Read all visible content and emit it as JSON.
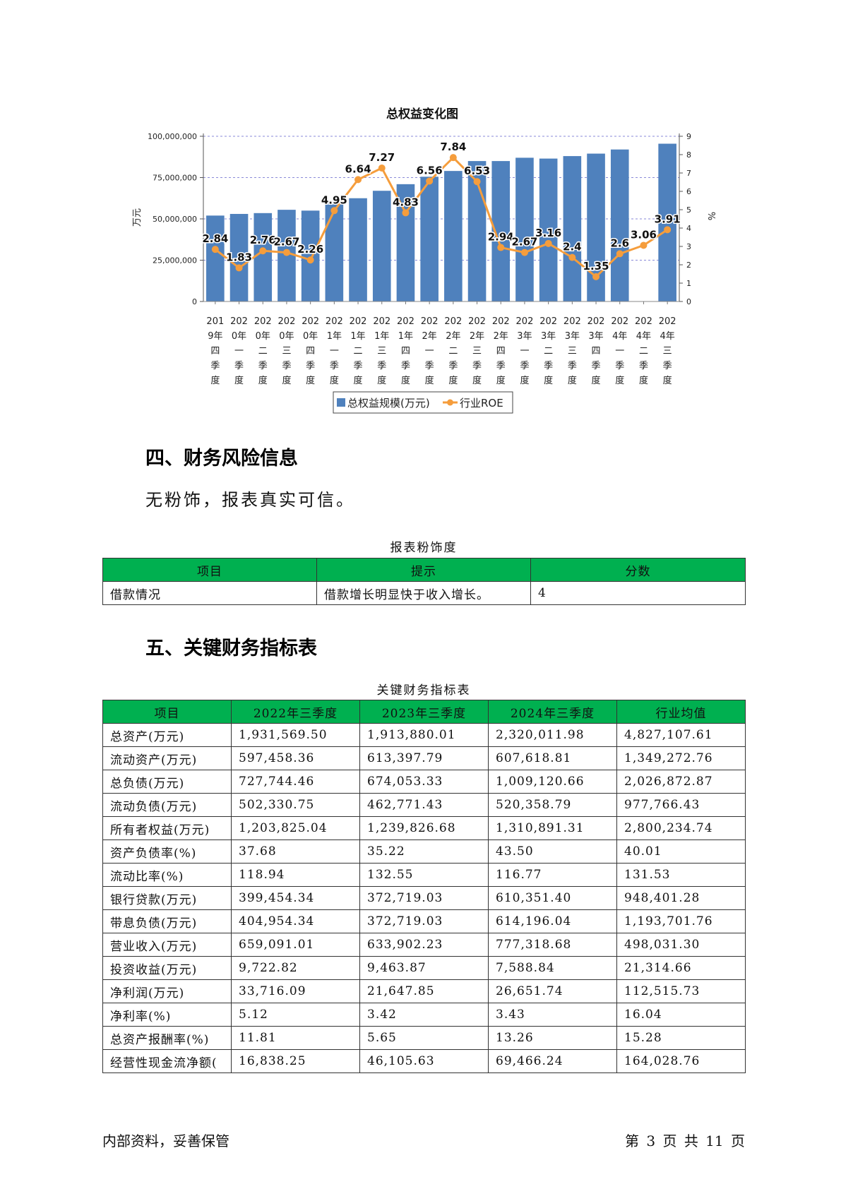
{
  "chart_data": {
    "type": "bar+line",
    "title": "总权益变化图",
    "categories": [
      "2019年四季度",
      "2020年一季度",
      "2020年二季度",
      "2020年三季度",
      "2020年四季度",
      "2021年一季度",
      "2021年二季度",
      "2021年三季度",
      "2021年四季度",
      "2022年一季度",
      "2022年二季度",
      "2022年三季度",
      "2022年四季度",
      "2023年一季度",
      "2023年二季度",
      "2023年三季度",
      "2023年四季度",
      "2024年一季度",
      "2024年二季度",
      "2024年三季度"
    ],
    "category_lines": [
      [
        "201",
        "9年",
        "四",
        "季",
        "度"
      ],
      [
        "202",
        "0年",
        "一",
        "季",
        "度"
      ],
      [
        "202",
        "0年",
        "二",
        "季",
        "度"
      ],
      [
        "202",
        "0年",
        "三",
        "季",
        "度"
      ],
      [
        "202",
        "0年",
        "四",
        "季",
        "度"
      ],
      [
        "202",
        "1年",
        "一",
        "季",
        "度"
      ],
      [
        "202",
        "1年",
        "二",
        "季",
        "度"
      ],
      [
        "202",
        "1年",
        "三",
        "季",
        "度"
      ],
      [
        "202",
        "1年",
        "四",
        "季",
        "度"
      ],
      [
        "202",
        "2年",
        "一",
        "季",
        "度"
      ],
      [
        "202",
        "2年",
        "二",
        "季",
        "度"
      ],
      [
        "202",
        "2年",
        "三",
        "季",
        "度"
      ],
      [
        "202",
        "2年",
        "四",
        "季",
        "度"
      ],
      [
        "202",
        "3年",
        "一",
        "季",
        "度"
      ],
      [
        "202",
        "3年",
        "二",
        "季",
        "度"
      ],
      [
        "202",
        "3年",
        "三",
        "季",
        "度"
      ],
      [
        "202",
        "3年",
        "四",
        "季",
        "度"
      ],
      [
        "202",
        "4年",
        "一",
        "季",
        "度"
      ],
      [
        "202",
        "4年",
        "二",
        "季",
        "度"
      ],
      [
        "202",
        "4年",
        "三",
        "季",
        "度"
      ]
    ],
    "series": [
      {
        "name": "总权益规模(万元)",
        "type": "bar",
        "axis": "left",
        "color": "#4f81bd",
        "values": [
          52000000,
          53000000,
          53500000,
          55500000,
          55000000,
          60000000,
          62500000,
          67000000,
          71000000,
          75500000,
          79000000,
          85000000,
          85000000,
          87000000,
          86500000,
          88000000,
          89500000,
          92000000,
          null,
          95500000
        ]
      },
      {
        "name": "行业ROE",
        "type": "line",
        "axis": "right",
        "color": "#f59d3c",
        "values": [
          2.84,
          1.83,
          2.76,
          2.67,
          2.26,
          4.95,
          6.64,
          7.27,
          4.83,
          6.56,
          7.84,
          6.53,
          2.94,
          2.67,
          3.16,
          2.4,
          1.35,
          2.6,
          3.06,
          3.91
        ],
        "labels": [
          "2.84",
          "1.83",
          "2.76",
          "2.67",
          "2.26",
          "4.95",
          "6.64",
          "7.27",
          "4.83",
          "6.56",
          "7.84",
          "6.53",
          "2.94",
          "2.67",
          "3.16",
          "2.4",
          "1.35",
          "2.6",
          "3.06",
          "3.91"
        ]
      }
    ],
    "left_axis": {
      "label": "万元",
      "ylim": [
        0,
        100000000
      ],
      "ticks": [
        "0",
        "25,000,000",
        "50,000,000",
        "75,000,000",
        "100,000,000"
      ]
    },
    "right_axis": {
      "label": "%",
      "ylim": [
        0,
        9
      ],
      "ticks": [
        "0",
        "1",
        "2",
        "3",
        "4",
        "5",
        "6",
        "7",
        "8",
        "9"
      ]
    },
    "grid": true,
    "legend_position": "bottom"
  },
  "section4": {
    "heading": "四、财务风险信息",
    "paragraph": "无粉饰，报表真实可信。",
    "table_caption": "报表粉饰度",
    "headers": [
      "项目",
      "提示",
      "分数"
    ],
    "rows": [
      [
        "借款情况",
        "借款增长明显快于收入增长。",
        "4"
      ]
    ]
  },
  "section5": {
    "heading": "五、关键财务指标表",
    "table_caption": "关键财务指标表",
    "headers": [
      "项目",
      "2022年三季度",
      "2023年三季度",
      "2024年三季度",
      "行业均值"
    ],
    "rows": [
      [
        "总资产(万元)",
        "1,931,569.50",
        "1,913,880.01",
        "2,320,011.98",
        "4,827,107.61"
      ],
      [
        "流动资产(万元)",
        "597,458.36",
        "613,397.79",
        "607,618.81",
        "1,349,272.76"
      ],
      [
        "总负债(万元)",
        "727,744.46",
        "674,053.33",
        "1,009,120.66",
        "2,026,872.87"
      ],
      [
        "流动负债(万元)",
        "502,330.75",
        "462,771.43",
        "520,358.79",
        "977,766.43"
      ],
      [
        "所有者权益(万元)",
        "1,203,825.04",
        "1,239,826.68",
        "1,310,891.31",
        "2,800,234.74"
      ],
      [
        "资产负债率(%)",
        "37.68",
        "35.22",
        "43.50",
        "40.01"
      ],
      [
        "流动比率(%)",
        "118.94",
        "132.55",
        "116.77",
        "131.53"
      ],
      [
        "银行贷款(万元)",
        "399,454.34",
        "372,719.03",
        "610,351.40",
        "948,401.28"
      ],
      [
        "带息负债(万元)",
        "404,954.34",
        "372,719.03",
        "614,196.04",
        "1,193,701.76"
      ],
      [
        "营业收入(万元)",
        "659,091.01",
        "633,902.23",
        "777,318.68",
        "498,031.30"
      ],
      [
        "投资收益(万元)",
        "9,722.82",
        "9,463.87",
        "7,588.84",
        "21,314.66"
      ],
      [
        "净利润(万元)",
        "33,716.09",
        "21,647.85",
        "26,651.74",
        "112,515.73"
      ],
      [
        "净利率(%)",
        "5.12",
        "3.42",
        "3.43",
        "16.04"
      ],
      [
        "总资产报酬率(%)",
        "11.81",
        "5.65",
        "13.26",
        "15.28"
      ],
      [
        "经营性现金流净额(",
        "16,838.25",
        "46,105.63",
        "69,466.24",
        "164,028.76"
      ]
    ]
  },
  "footer": {
    "left": "内部资料，妥善保管",
    "right": "第 3 页  共 11 页"
  }
}
